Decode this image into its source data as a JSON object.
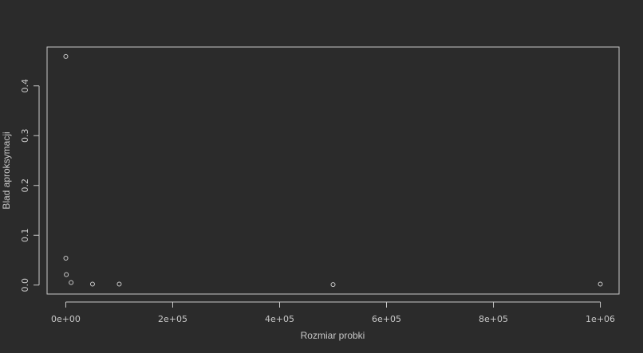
{
  "chart_data": {
    "type": "scatter",
    "title": "",
    "xlabel": "Rozmiar probki",
    "ylabel": "Blad aproksymacji",
    "xlim": [
      -35000,
      1035000
    ],
    "ylim": [
      -0.018,
      0.478
    ],
    "xticks": [
      {
        "value": 0,
        "label": "0e+00"
      },
      {
        "value": 200000,
        "label": "2e+05"
      },
      {
        "value": 400000,
        "label": "4e+05"
      },
      {
        "value": 600000,
        "label": "6e+05"
      },
      {
        "value": 800000,
        "label": "8e+05"
      },
      {
        "value": 1000000,
        "label": "1e+06"
      }
    ],
    "yticks": [
      {
        "value": 0.0,
        "label": "0.0"
      },
      {
        "value": 0.1,
        "label": "0.1"
      },
      {
        "value": 0.2,
        "label": "0.2"
      },
      {
        "value": 0.3,
        "label": "0.3"
      },
      {
        "value": 0.4,
        "label": "0.4"
      }
    ],
    "points": [
      {
        "x": 10,
        "y": 0.459
      },
      {
        "x": 100,
        "y": 0.054
      },
      {
        "x": 1000,
        "y": 0.021
      },
      {
        "x": 10000,
        "y": 0.005
      },
      {
        "x": 50000,
        "y": 0.002
      },
      {
        "x": 100000,
        "y": 0.002
      },
      {
        "x": 500000,
        "y": 0.001
      },
      {
        "x": 1000000,
        "y": 0.002
      }
    ],
    "grid": false,
    "colors": {
      "background": "#2b2b2b",
      "foreground": "#c8c8c8"
    }
  }
}
